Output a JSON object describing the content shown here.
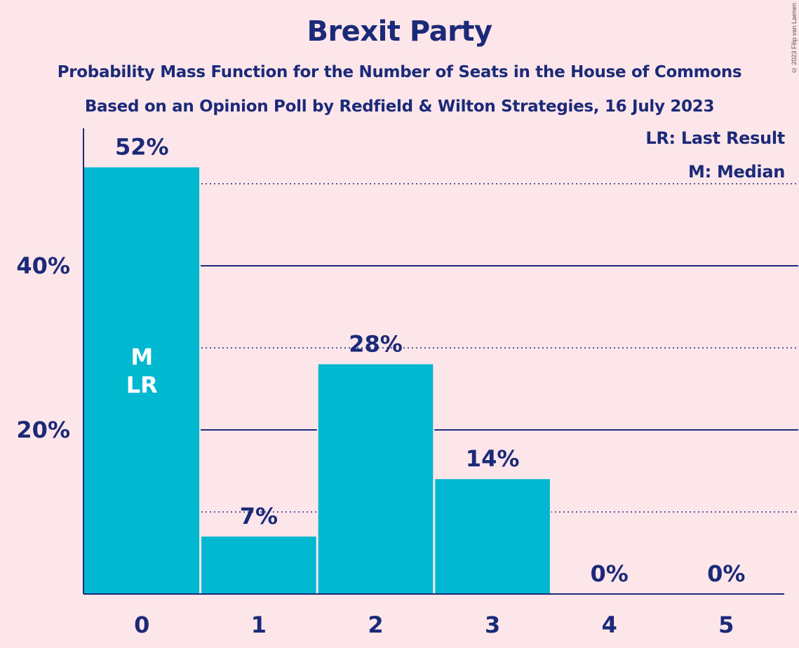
{
  "title": "Brexit Party",
  "subtitle1": "Probability Mass Function for the Number of Seats in the House of Commons",
  "subtitle2": "Based on an Opinion Poll by Redfield & Wilton Strategies, 16 July 2023",
  "copyright": "© 2023 Filip van Laenen",
  "legend": {
    "last_result": "LR: Last Result",
    "median": "M: Median"
  },
  "colors": {
    "background": "#fde6ea",
    "bar": "#00b8d0",
    "text": "#1b2a78"
  },
  "chart_data": {
    "type": "bar",
    "categories": [
      "0",
      "1",
      "2",
      "3",
      "4",
      "5"
    ],
    "values": [
      52,
      7,
      28,
      14,
      0,
      0
    ],
    "value_labels": [
      "52%",
      "7%",
      "28%",
      "14%",
      "0%",
      "0%"
    ],
    "bar_annotations": [
      [
        "M",
        "LR"
      ],
      [],
      [],
      [],
      [],
      []
    ],
    "ylim": [
      0,
      57
    ],
    "yticks": [
      {
        "value": 20,
        "label": "20%"
      },
      {
        "value": 40,
        "label": "40%"
      }
    ],
    "minor_gridlines": [
      10,
      30,
      50
    ],
    "xlabel": "",
    "ylabel": ""
  }
}
